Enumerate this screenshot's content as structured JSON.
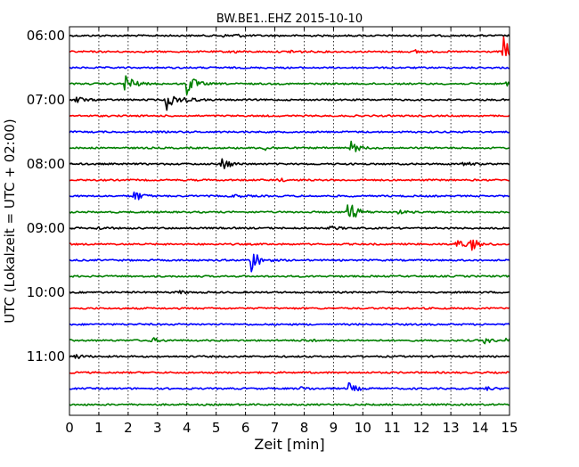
{
  "chart_data": {
    "type": "line",
    "title": "BW.BE1..EHZ 2015-10-10",
    "xlabel": "Zeit  [min]",
    "ylabel": "UTC (Lokalzeit = UTC + 02:00)",
    "xlim": [
      0,
      15
    ],
    "x_ticks": [
      "0",
      "1",
      "2",
      "3",
      "4",
      "5",
      "6",
      "7",
      "8",
      "9",
      "10",
      "11",
      "12",
      "13",
      "14",
      "15"
    ],
    "y_tick_labels": [
      "06:00",
      "07:00",
      "08:00",
      "09:00",
      "10:00",
      "11:00"
    ],
    "vertical_grid": "dotted",
    "trace_colors": [
      "#000000",
      "#ff0000",
      "#0000ff",
      "#008000"
    ],
    "traces": [
      {
        "start": "06:00",
        "events": [
          {
            "t": 5.6,
            "amp": 2
          },
          {
            "t": 5.2,
            "amp": 1.2
          }
        ]
      },
      {
        "start": "06:15",
        "events": [
          {
            "t": 14.8,
            "amp": 16
          },
          {
            "t": 7.5,
            "amp": 2.5
          },
          {
            "t": 5.5,
            "amp": 2
          },
          {
            "t": 11.8,
            "amp": 2
          }
        ]
      },
      {
        "start": "06:30",
        "events": []
      },
      {
        "start": "06:45",
        "events": [
          {
            "t": 1.9,
            "amp": 14
          },
          {
            "t": 4.0,
            "amp": 14
          },
          {
            "t": 14.9,
            "amp": 4
          }
        ]
      },
      {
        "start": "07:00",
        "events": [
          {
            "t": 0.2,
            "amp": 5
          },
          {
            "t": 3.3,
            "amp": 12
          },
          {
            "t": 3.9,
            "amp": 5
          }
        ]
      },
      {
        "start": "07:15",
        "events": []
      },
      {
        "start": "07:30",
        "events": []
      },
      {
        "start": "07:45",
        "events": [
          {
            "t": 9.6,
            "amp": 7
          },
          {
            "t": 6.6,
            "amp": 3
          }
        ]
      },
      {
        "start": "08:00",
        "events": [
          {
            "t": 5.2,
            "amp": 8
          },
          {
            "t": 13.4,
            "amp": 3
          }
        ]
      },
      {
        "start": "08:15",
        "events": [
          {
            "t": 7.1,
            "amp": 2
          }
        ]
      },
      {
        "start": "08:30",
        "events": [
          {
            "t": 2.2,
            "amp": 7
          },
          {
            "t": 5.6,
            "amp": 2
          }
        ]
      },
      {
        "start": "08:45",
        "events": [
          {
            "t": 9.5,
            "amp": 16
          },
          {
            "t": 11.2,
            "amp": 2
          }
        ]
      },
      {
        "start": "09:00",
        "events": [
          {
            "t": 0.9,
            "amp": 2
          },
          {
            "t": 8.9,
            "amp": 2.5
          }
        ]
      },
      {
        "start": "09:15",
        "events": [
          {
            "t": 13.2,
            "amp": 7
          },
          {
            "t": 13.7,
            "amp": 7
          }
        ]
      },
      {
        "start": "09:30",
        "events": [
          {
            "t": 6.2,
            "amp": 15
          }
        ]
      },
      {
        "start": "09:45",
        "events": []
      },
      {
        "start": "10:00",
        "events": [
          {
            "t": 3.7,
            "amp": 2
          }
        ]
      },
      {
        "start": "10:15",
        "events": []
      },
      {
        "start": "10:30",
        "events": []
      },
      {
        "start": "10:45",
        "events": [
          {
            "t": 2.8,
            "amp": 3
          },
          {
            "t": 8.0,
            "amp": 2
          },
          {
            "t": 14.1,
            "amp": 4
          },
          {
            "t": 14.9,
            "amp": 3
          }
        ]
      },
      {
        "start": "11:00",
        "events": [
          {
            "t": 0.2,
            "amp": 3
          }
        ]
      },
      {
        "start": "11:15",
        "events": []
      },
      {
        "start": "11:30",
        "events": [
          {
            "t": 9.5,
            "amp": 7
          },
          {
            "t": 7.9,
            "amp": 2
          },
          {
            "t": 14.2,
            "amp": 2
          }
        ]
      },
      {
        "start": "11:45",
        "events": []
      }
    ]
  }
}
